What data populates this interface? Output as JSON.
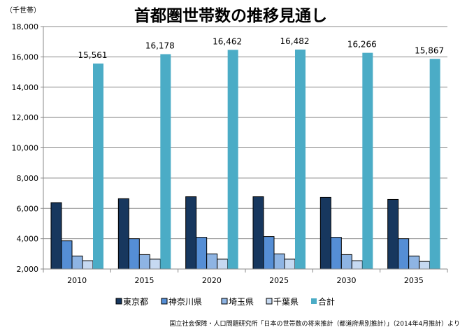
{
  "chart_data": {
    "type": "bar",
    "title": "首都圏世帯数の推移見通し",
    "unit_label": "（千世帯）",
    "categories": [
      "2010",
      "2015",
      "2020",
      "2025",
      "2030",
      "2035"
    ],
    "series": [
      {
        "name": "東京都",
        "color": "#17375e",
        "values": [
          6380,
          6640,
          6770,
          6770,
          6730,
          6590
        ]
      },
      {
        "name": "神奈川県",
        "color": "#558ed5",
        "values": [
          3860,
          4000,
          4090,
          4140,
          4090,
          4000
        ]
      },
      {
        "name": "埼玉県",
        "color": "#8eb4e3",
        "values": [
          2860,
          2950,
          3000,
          3000,
          2950,
          2860
        ]
      },
      {
        "name": "千葉県",
        "color": "#c6d9f1",
        "values": [
          2550,
          2650,
          2650,
          2650,
          2550,
          2500
        ]
      },
      {
        "name": "合計",
        "color": "#4bacc6",
        "values": [
          15561,
          16178,
          16462,
          16482,
          16266,
          15867
        ]
      }
    ],
    "total_labels": [
      "15,561",
      "16,178",
      "16,462",
      "16,482",
      "16,266",
      "15,867"
    ],
    "ylim": [
      2000,
      18000
    ],
    "yticks": [
      2000,
      4000,
      6000,
      8000,
      10000,
      12000,
      14000,
      16000,
      18000
    ],
    "ytick_labels": [
      "2,000",
      "4,000",
      "6,000",
      "8,000",
      "10,000",
      "12,000",
      "14,000",
      "16,000",
      "18,000"
    ],
    "grid": true,
    "legend_position": "bottom",
    "source": "国立社会保障・人口問題研究所「日本の世帯数の将来推計（都道府県別推計）」（2014年4月推計）より"
  }
}
